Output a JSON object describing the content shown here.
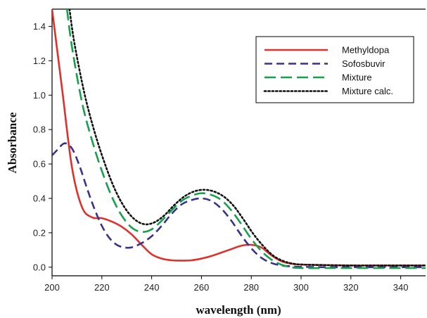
{
  "chart_data": {
    "type": "line",
    "title": "",
    "xlabel": "wavelength (nm)",
    "ylabel": "Absorbance",
    "xlim": [
      200,
      350
    ],
    "ylim": [
      -0.05,
      1.5
    ],
    "x_ticks": [
      "200",
      "220",
      "240",
      "260",
      "280",
      "300",
      "320",
      "340"
    ],
    "y_ticks": [
      "0.0",
      "0.2",
      "0.4",
      "0.6",
      "0.8",
      "1.0",
      "1.2",
      "1.4"
    ],
    "grid": false,
    "legend_position": "top-right",
    "series": [
      {
        "name": "Methyldopa",
        "color": "#e0302a",
        "dash": "solid",
        "x": [
          200,
          204,
          208,
          212,
          216,
          220,
          224,
          228,
          232,
          236,
          240,
          244,
          248,
          252,
          256,
          260,
          264,
          268,
          272,
          276,
          280,
          284,
          288,
          292,
          296,
          300,
          310,
          320,
          330,
          340,
          350
        ],
        "y": [
          1.5,
          1.04,
          0.58,
          0.35,
          0.29,
          0.285,
          0.265,
          0.235,
          0.19,
          0.13,
          0.075,
          0.05,
          0.04,
          0.038,
          0.04,
          0.05,
          0.065,
          0.085,
          0.105,
          0.125,
          0.13,
          0.115,
          0.07,
          0.035,
          0.02,
          0.015,
          0.012,
          0.01,
          0.01,
          0.01,
          0.01
        ]
      },
      {
        "name": "Sofosbuvir",
        "color": "#38328f",
        "dash": "dash",
        "x": [
          200,
          202,
          205,
          208,
          211,
          214,
          217,
          220,
          223,
          226,
          229,
          232,
          236,
          240,
          244,
          248,
          252,
          256,
          260,
          264,
          268,
          272,
          276,
          280,
          284,
          288,
          292,
          296,
          300,
          310,
          320,
          330,
          340,
          350
        ],
        "y": [
          0.65,
          0.68,
          0.72,
          0.69,
          0.59,
          0.46,
          0.34,
          0.24,
          0.17,
          0.13,
          0.115,
          0.115,
          0.14,
          0.18,
          0.24,
          0.31,
          0.365,
          0.39,
          0.4,
          0.385,
          0.34,
          0.27,
          0.185,
          0.11,
          0.055,
          0.025,
          0.01,
          0.005,
          0.002,
          0.0,
          0.0,
          0.0,
          0.0,
          0.0
        ]
      },
      {
        "name": "Mixture",
        "color": "#15a04a",
        "dash": "longdash",
        "x": [
          206,
          208,
          212,
          216,
          220,
          224,
          228,
          232,
          236,
          240,
          244,
          248,
          252,
          256,
          260,
          264,
          268,
          272,
          276,
          280,
          284,
          288,
          292,
          296,
          300,
          310,
          320,
          330,
          340,
          350
        ],
        "y": [
          1.5,
          1.28,
          0.96,
          0.74,
          0.56,
          0.41,
          0.3,
          0.23,
          0.205,
          0.22,
          0.27,
          0.33,
          0.385,
          0.415,
          0.43,
          0.42,
          0.39,
          0.33,
          0.25,
          0.165,
          0.095,
          0.045,
          0.015,
          0.0,
          -0.005,
          -0.005,
          -0.005,
          -0.005,
          -0.005,
          -0.005
        ]
      },
      {
        "name": "Mixture calc.",
        "color": "#111111",
        "dash": "dot",
        "x": [
          207,
          209,
          213,
          217,
          221,
          225,
          229,
          233,
          237,
          241,
          245,
          249,
          253,
          257,
          261,
          265,
          269,
          273,
          277,
          281,
          285,
          289,
          293,
          297,
          301,
          310,
          320,
          330,
          340,
          350
        ],
        "y": [
          1.5,
          1.3,
          1.01,
          0.79,
          0.61,
          0.46,
          0.35,
          0.28,
          0.25,
          0.26,
          0.3,
          0.36,
          0.41,
          0.44,
          0.45,
          0.44,
          0.41,
          0.355,
          0.275,
          0.19,
          0.12,
          0.065,
          0.035,
          0.02,
          0.015,
          0.012,
          0.01,
          0.01,
          0.01,
          0.01
        ]
      }
    ]
  }
}
